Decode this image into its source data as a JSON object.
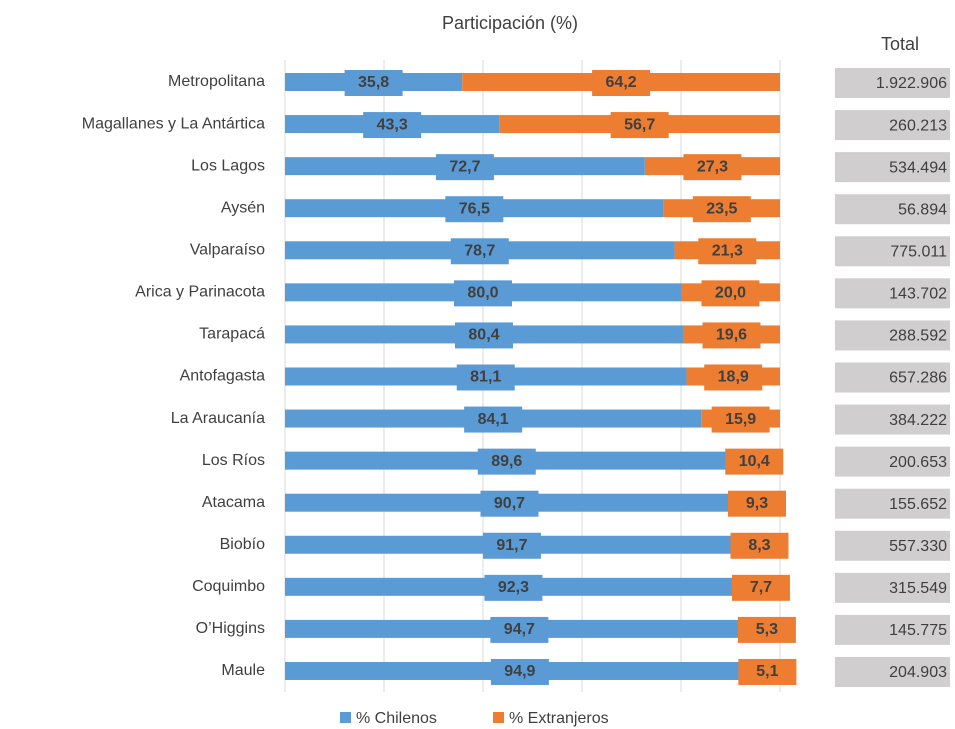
{
  "chart_data": {
    "type": "bar",
    "orientation": "horizontal",
    "stacked": true,
    "title": "Participación (%)",
    "categories": [
      "Metropolitana",
      "Magallanes y La Antártica",
      "Los Lagos",
      "Aysén",
      "Valparaíso",
      "Arica y Parinacota",
      "Tarapacá",
      "Antofagasta",
      "La Araucanía",
      "Los Ríos",
      "Atacama",
      "Biobío",
      "Coquimbo",
      "O’Higgins",
      "Maule"
    ],
    "series": [
      {
        "name": "% Chilenos",
        "color": "#5b9bd5",
        "values": [
          35.8,
          43.3,
          72.7,
          76.5,
          78.7,
          80.0,
          80.4,
          81.1,
          84.1,
          89.6,
          90.7,
          91.7,
          92.3,
          94.7,
          94.9
        ],
        "value_labels": [
          "35,8",
          "43,3",
          "72,7",
          "76,5",
          "78,7",
          "80,0",
          "80,4",
          "81,1",
          "84,1",
          "89,6",
          "90,7",
          "91,7",
          "92,3",
          "94,7",
          "94,9"
        ]
      },
      {
        "name": "% Extranjeros",
        "color": "#ed7d31",
        "values": [
          64.2,
          56.7,
          27.3,
          23.5,
          21.3,
          20.0,
          19.6,
          18.9,
          15.9,
          10.4,
          9.3,
          8.3,
          7.7,
          5.3,
          5.1
        ],
        "value_labels": [
          "64,2",
          "56,7",
          "27,3",
          "23,5",
          "21,3",
          "20,0",
          "19,6",
          "18,9",
          "15,9",
          "10,4",
          "9,3",
          "8,3",
          "7,7",
          "5,3",
          "5,1"
        ]
      }
    ],
    "xlim": [
      0,
      100
    ],
    "xticks": [
      0,
      20,
      40,
      60,
      80,
      100
    ],
    "grid": true,
    "legend": "bottom"
  },
  "totals": {
    "title": "Total",
    "rows": [
      "1.922.906",
      "260.213",
      "534.494",
      "56.894",
      "775.011",
      "143.702",
      "288.592",
      "657.286",
      "384.222",
      "200.653",
      "155.652",
      "557.330",
      "315.549",
      "145.775",
      "204.903"
    ]
  }
}
